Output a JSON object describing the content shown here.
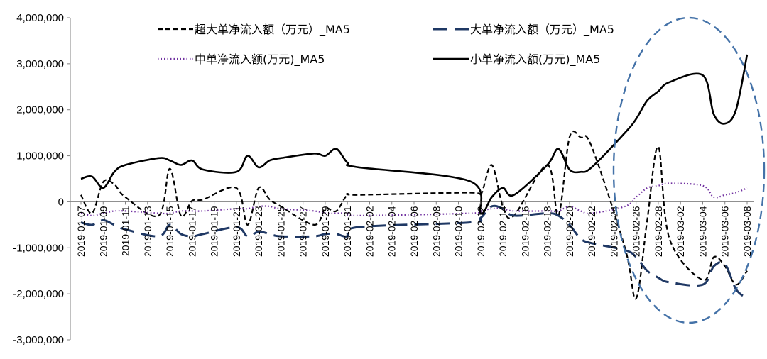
{
  "chart_data": {
    "type": "line",
    "title": "",
    "xlabel": "",
    "ylabel": "",
    "ylim": [
      -3000000,
      4000000
    ],
    "yticks": [
      4000000,
      3000000,
      2000000,
      1000000,
      0,
      -1000000,
      -2000000,
      -3000000
    ],
    "ytick_labels": [
      "4,000,000",
      "3,000,000",
      "2,000,000",
      "1,000,000",
      "0",
      "-1,000,000",
      "-2,000,000",
      "-3,000,000"
    ],
    "x": [
      "2019-01-07",
      "2019-01-08",
      "2019-01-09",
      "2019-01-10",
      "2019-01-11",
      "2019-01-14",
      "2019-01-15",
      "2019-01-16",
      "2019-01-17",
      "2019-01-18",
      "2019-01-21",
      "2019-01-22",
      "2019-01-23",
      "2019-01-24",
      "2019-01-25",
      "2019-01-28",
      "2019-01-29",
      "2019-01-30",
      "2019-01-31",
      "2019-02-01",
      "2019-02-11",
      "2019-02-12",
      "2019-02-13",
      "2019-02-14",
      "2019-02-15",
      "2019-02-18",
      "2019-02-19",
      "2019-02-20",
      "2019-02-21",
      "2019-02-22",
      "2019-02-25",
      "2019-02-26",
      "2019-02-27",
      "2019-02-28",
      "2019-03-01",
      "2019-03-04",
      "2019-03-05",
      "2019-03-06",
      "2019-03-07",
      "2019-03-08"
    ],
    "xtick_labels": [
      "2019-01-07",
      "2019-01-09",
      "2019-01-11",
      "2019-01-13",
      "2019-01-15",
      "2019-01-17",
      "2019-01-19",
      "2019-01-21",
      "2019-01-23",
      "2019-01-25",
      "2019-01-27",
      "2019-01-29",
      "2019-01-31",
      "2019-02-02",
      "2019-02-04",
      "2019-02-06",
      "2019-02-08",
      "2019-02-10",
      "2019-02-12",
      "2019-02-14",
      "2019-02-16",
      "2019-02-18",
      "2019-02-20",
      "2019-02-22",
      "2019-02-24",
      "2019-02-26",
      "2019-02-28",
      "2019-03-02",
      "2019-03-04",
      "2019-03-06",
      "2019-03-08"
    ],
    "series": [
      {
        "name": "超大单净流入额（万元）_MA5",
        "style": "short-dash",
        "color": "#000000",
        "values": [
          150000,
          -250000,
          430000,
          380000,
          100000,
          -300000,
          720000,
          -300000,
          20000,
          50000,
          300000,
          -500000,
          300000,
          50000,
          -100000,
          -500000,
          -150000,
          -200000,
          150000,
          150000,
          200000,
          150000,
          800000,
          -100000,
          -300000,
          800000,
          -300000,
          1400000,
          1400000,
          1200000,
          -1000000,
          -2100000,
          -400000,
          1200000,
          -800000,
          -1700000,
          -1200000,
          -1400000,
          -1800000,
          -1500000
        ]
      },
      {
        "name": "大单净流入额（万元）_MA5",
        "style": "long-dash",
        "color": "#1f3864",
        "values": [
          -450000,
          -500000,
          -400000,
          -500000,
          -600000,
          -750000,
          -500000,
          -700000,
          -750000,
          -700000,
          -550000,
          -750000,
          -650000,
          -700000,
          -750000,
          -750000,
          -700000,
          -700000,
          -750000,
          -550000,
          -450000,
          -350000,
          -100000,
          -150000,
          -300000,
          -250000,
          -300000,
          -500000,
          -800000,
          -900000,
          -1050000,
          -1200000,
          -1500000,
          -1650000,
          -1750000,
          -1800000,
          -1400000,
          -1350000,
          -1900000,
          -2100000
        ]
      },
      {
        "name": "中单净流入额(万元)_MA5",
        "style": "dotted",
        "color": "#7030a0",
        "values": [
          -250000,
          -300000,
          -250000,
          -200000,
          -200000,
          -250000,
          -250000,
          -200000,
          -200000,
          -200000,
          -150000,
          -150000,
          -100000,
          -100000,
          -150000,
          -200000,
          -250000,
          -250000,
          -250000,
          -300000,
          -250000,
          -200000,
          -150000,
          -150000,
          -200000,
          -200000,
          -200000,
          -100000,
          -200000,
          -250000,
          -100000,
          100000,
          300000,
          350000,
          400000,
          350000,
          100000,
          150000,
          200000,
          300000
        ]
      },
      {
        "name": "小单净流入额(万元)_MA5",
        "style": "solid",
        "color": "#000000",
        "values": [
          500000,
          550000,
          300000,
          650000,
          800000,
          950000,
          900000,
          800000,
          900000,
          700000,
          650000,
          1000000,
          750000,
          900000,
          950000,
          1050000,
          1000000,
          1150000,
          850000,
          750000,
          450000,
          -250000,
          100000,
          300000,
          150000,
          800000,
          1150000,
          700000,
          650000,
          750000,
          1500000,
          1800000,
          2200000,
          2400000,
          2600000,
          2750000,
          1900000,
          1700000,
          2000000,
          3200000
        ]
      }
    ],
    "legend_position": "top",
    "annotation": "dashed ellipse highlighting 2019-02-24 to 2019-03-08"
  }
}
